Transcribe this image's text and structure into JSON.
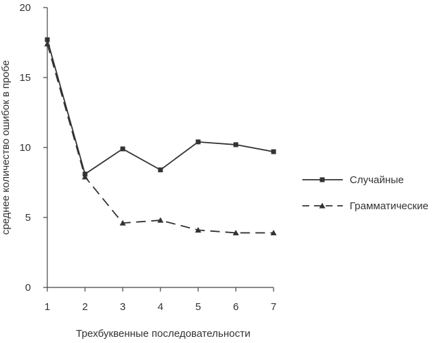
{
  "chart_data": {
    "type": "line",
    "title": "",
    "xlabel": "Трехбуквенные последовательности",
    "ylabel": "среднее количество ошибок в пробе",
    "x": [
      1,
      2,
      3,
      4,
      5,
      6,
      7
    ],
    "xlim": [
      1,
      7
    ],
    "ylim": [
      0,
      20
    ],
    "y_ticks": [
      0,
      5,
      10,
      15,
      20
    ],
    "x_ticks": [
      1,
      2,
      3,
      4,
      5,
      6,
      7
    ],
    "grid": false,
    "legend_position": "right",
    "series": [
      {
        "name": "Случайные",
        "values": [
          17.7,
          8.1,
          9.9,
          8.4,
          10.4,
          10.2,
          9.7
        ],
        "marker": "square",
        "line_style": "solid",
        "color": "#333333"
      },
      {
        "name": "Грамматические",
        "values": [
          17.4,
          7.9,
          4.6,
          4.8,
          4.1,
          3.9,
          3.9
        ],
        "marker": "triangle",
        "line_style": "dashed",
        "color": "#333333"
      }
    ]
  }
}
